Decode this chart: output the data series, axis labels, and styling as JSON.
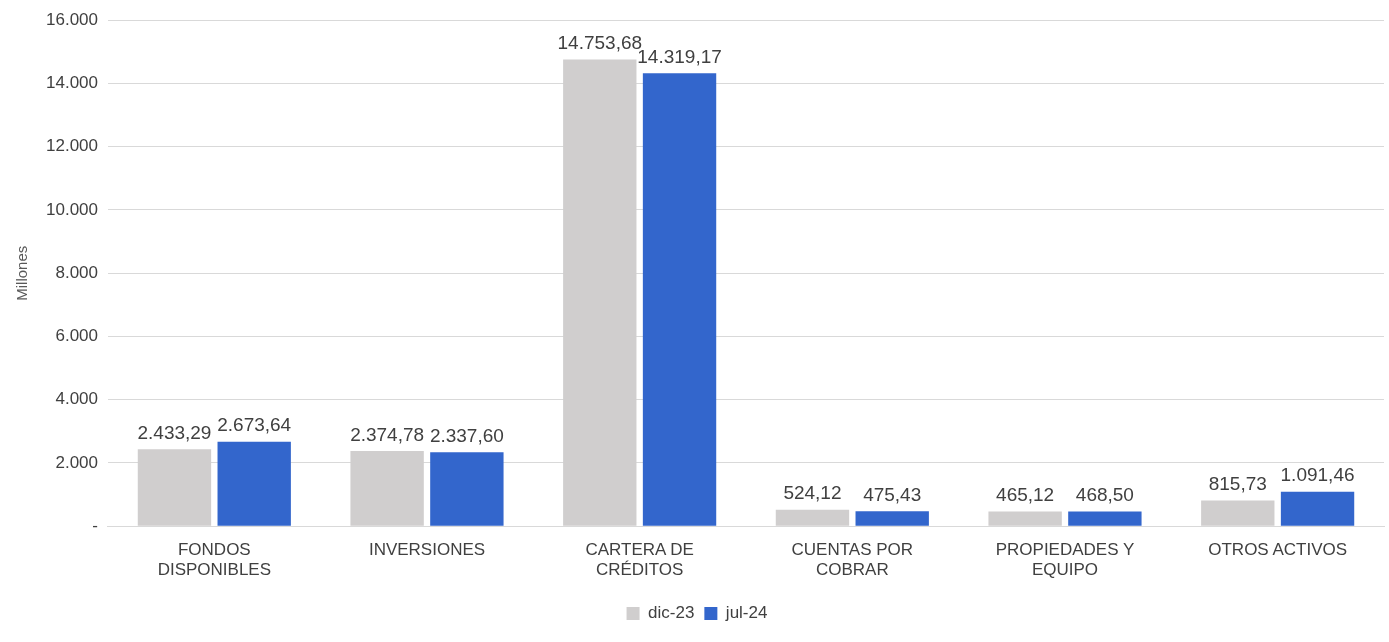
{
  "chart_data": {
    "type": "bar",
    "ylabel": "Millones",
    "categories": [
      "FONDOS DISPONIBLES",
      "INVERSIONES",
      "CARTERA DE CRÉDITOS",
      "CUENTAS POR COBRAR",
      "PROPIEDADES Y EQUIPO",
      "OTROS ACTIVOS"
    ],
    "series": [
      {
        "name": "dic-23",
        "color": "#d0cece",
        "values": [
          2433.29,
          2374.78,
          14753.68,
          524.12,
          465.12,
          815.73
        ],
        "value_labels": [
          "2.433,29",
          "2.374,78",
          "14.753,68",
          "524,12",
          "465,12",
          "815,73"
        ]
      },
      {
        "name": "jul-24",
        "color": "#3366cc",
        "values": [
          2673.64,
          2337.6,
          14319.17,
          475.43,
          468.5,
          1091.46
        ],
        "value_labels": [
          "2.673,64",
          "2.337,60",
          "14.319,17",
          "475,43",
          "468,50",
          "1.091,46"
        ]
      }
    ],
    "ylim": [
      0,
      16000
    ],
    "yticks": [
      {
        "value": 0,
        "label": "-"
      },
      {
        "value": 2000,
        "label": "2.000"
      },
      {
        "value": 4000,
        "label": "4.000"
      },
      {
        "value": 6000,
        "label": "6.000"
      },
      {
        "value": 8000,
        "label": "8.000"
      },
      {
        "value": 10000,
        "label": "10.000"
      },
      {
        "value": 12000,
        "label": "12.000"
      },
      {
        "value": 14000,
        "label": "14.000"
      },
      {
        "value": 16000,
        "label": "16.000"
      }
    ],
    "grid": "y",
    "legend": "bottom"
  }
}
